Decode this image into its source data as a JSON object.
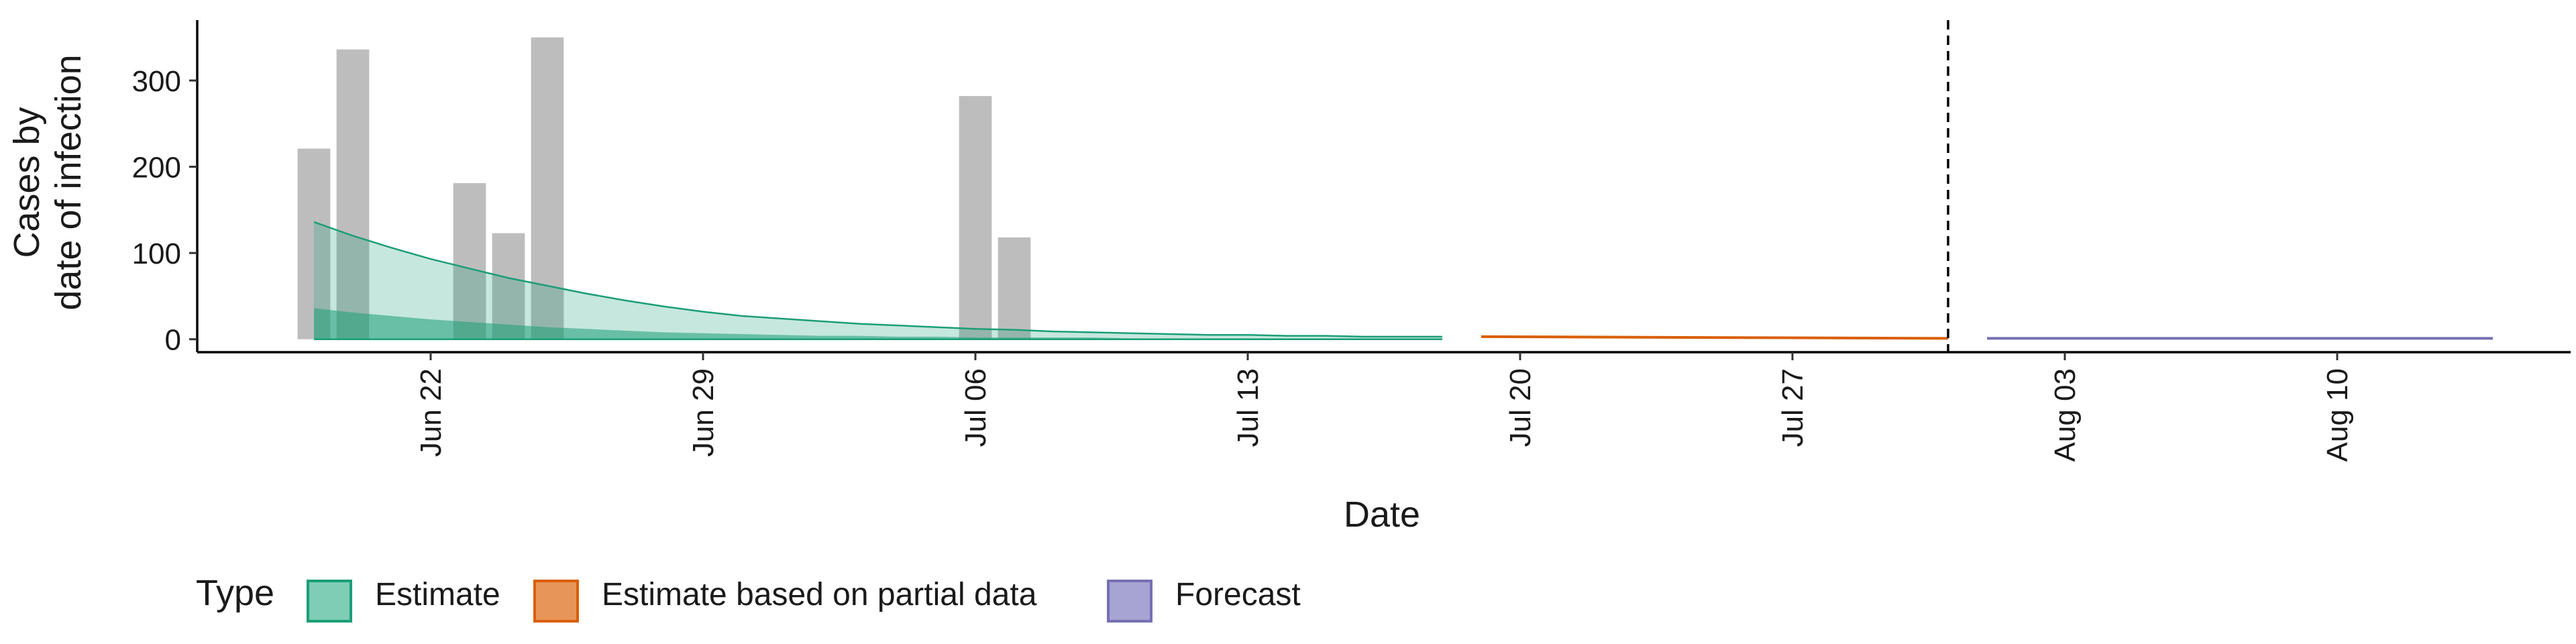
{
  "chart_data": {
    "type": "bar",
    "xlabel": "Date",
    "ylabel_lines": [
      "Cases by",
      "date of infection"
    ],
    "ylim": [
      -15,
      370
    ],
    "xlim": [
      "2020-06-16",
      "2020-08-16"
    ],
    "y_ticks": [
      0,
      100,
      200,
      300
    ],
    "x_ticks": [
      {
        "date": "2020-06-22",
        "label": "Jun 22"
      },
      {
        "date": "2020-06-29",
        "label": "Jun 29"
      },
      {
        "date": "2020-07-06",
        "label": "Jul 06"
      },
      {
        "date": "2020-07-13",
        "label": "Jul 13"
      },
      {
        "date": "2020-07-20",
        "label": "Jul 20"
      },
      {
        "date": "2020-07-27",
        "label": "Jul 27"
      },
      {
        "date": "2020-08-03",
        "label": "Aug 03"
      },
      {
        "date": "2020-08-10",
        "label": "Aug 10"
      }
    ],
    "reported_cases": {
      "color": "#bdbdbd",
      "points": [
        {
          "date": "2020-06-19",
          "value": 221
        },
        {
          "date": "2020-06-20",
          "value": 336
        },
        {
          "date": "2020-06-23",
          "value": 181
        },
        {
          "date": "2020-06-24",
          "value": 123
        },
        {
          "date": "2020-06-25",
          "value": 350
        },
        {
          "date": "2020-07-06",
          "value": 282
        },
        {
          "date": "2020-07-07",
          "value": 118
        }
      ]
    },
    "estimate": {
      "legend": "Estimate",
      "color": "#1b9e77",
      "fill": "#7fcdb4",
      "dates": [
        "2020-06-19",
        "2020-06-20",
        "2020-06-21",
        "2020-06-22",
        "2020-06-23",
        "2020-06-24",
        "2020-06-25",
        "2020-06-26",
        "2020-06-27",
        "2020-06-28",
        "2020-06-29",
        "2020-06-30",
        "2020-07-01",
        "2020-07-02",
        "2020-07-03",
        "2020-07-04",
        "2020-07-05",
        "2020-07-06",
        "2020-07-07",
        "2020-07-08",
        "2020-07-09",
        "2020-07-10",
        "2020-07-11",
        "2020-07-12",
        "2020-07-13",
        "2020-07-14",
        "2020-07-15",
        "2020-07-16",
        "2020-07-17",
        "2020-07-18"
      ],
      "upper_90": [
        136,
        120,
        106,
        93,
        82,
        71,
        62,
        53,
        45,
        38,
        32,
        27,
        24,
        21,
        18,
        16,
        14,
        12,
        11,
        9,
        8,
        7,
        6,
        5,
        5,
        4,
        4,
        3,
        3,
        3
      ],
      "upper_50": [
        36,
        31,
        27,
        23,
        20,
        17,
        14,
        12,
        10,
        8,
        7,
        6,
        5,
        4,
        4,
        3,
        3,
        2,
        2,
        2,
        2,
        1,
        1,
        1,
        1,
        1,
        1,
        1,
        1,
        1
      ],
      "lower": 0
    },
    "estimate_partial": {
      "legend": "Estimate based on partial data",
      "color": "#d95f02",
      "fill": "#e8955a",
      "dates": [
        "2020-07-19",
        "2020-07-31"
      ],
      "values": [
        3,
        1
      ]
    },
    "forecast": {
      "legend": "Forecast",
      "color": "#7570b3",
      "fill": "#a7a3d2",
      "dates": [
        "2020-08-01",
        "2020-08-14"
      ],
      "values": [
        1,
        1
      ]
    },
    "vline_date": "2020-07-31",
    "legend": {
      "title": "Type",
      "position": "bottom",
      "items": [
        "Estimate",
        "Estimate based on partial data",
        "Forecast"
      ]
    }
  }
}
